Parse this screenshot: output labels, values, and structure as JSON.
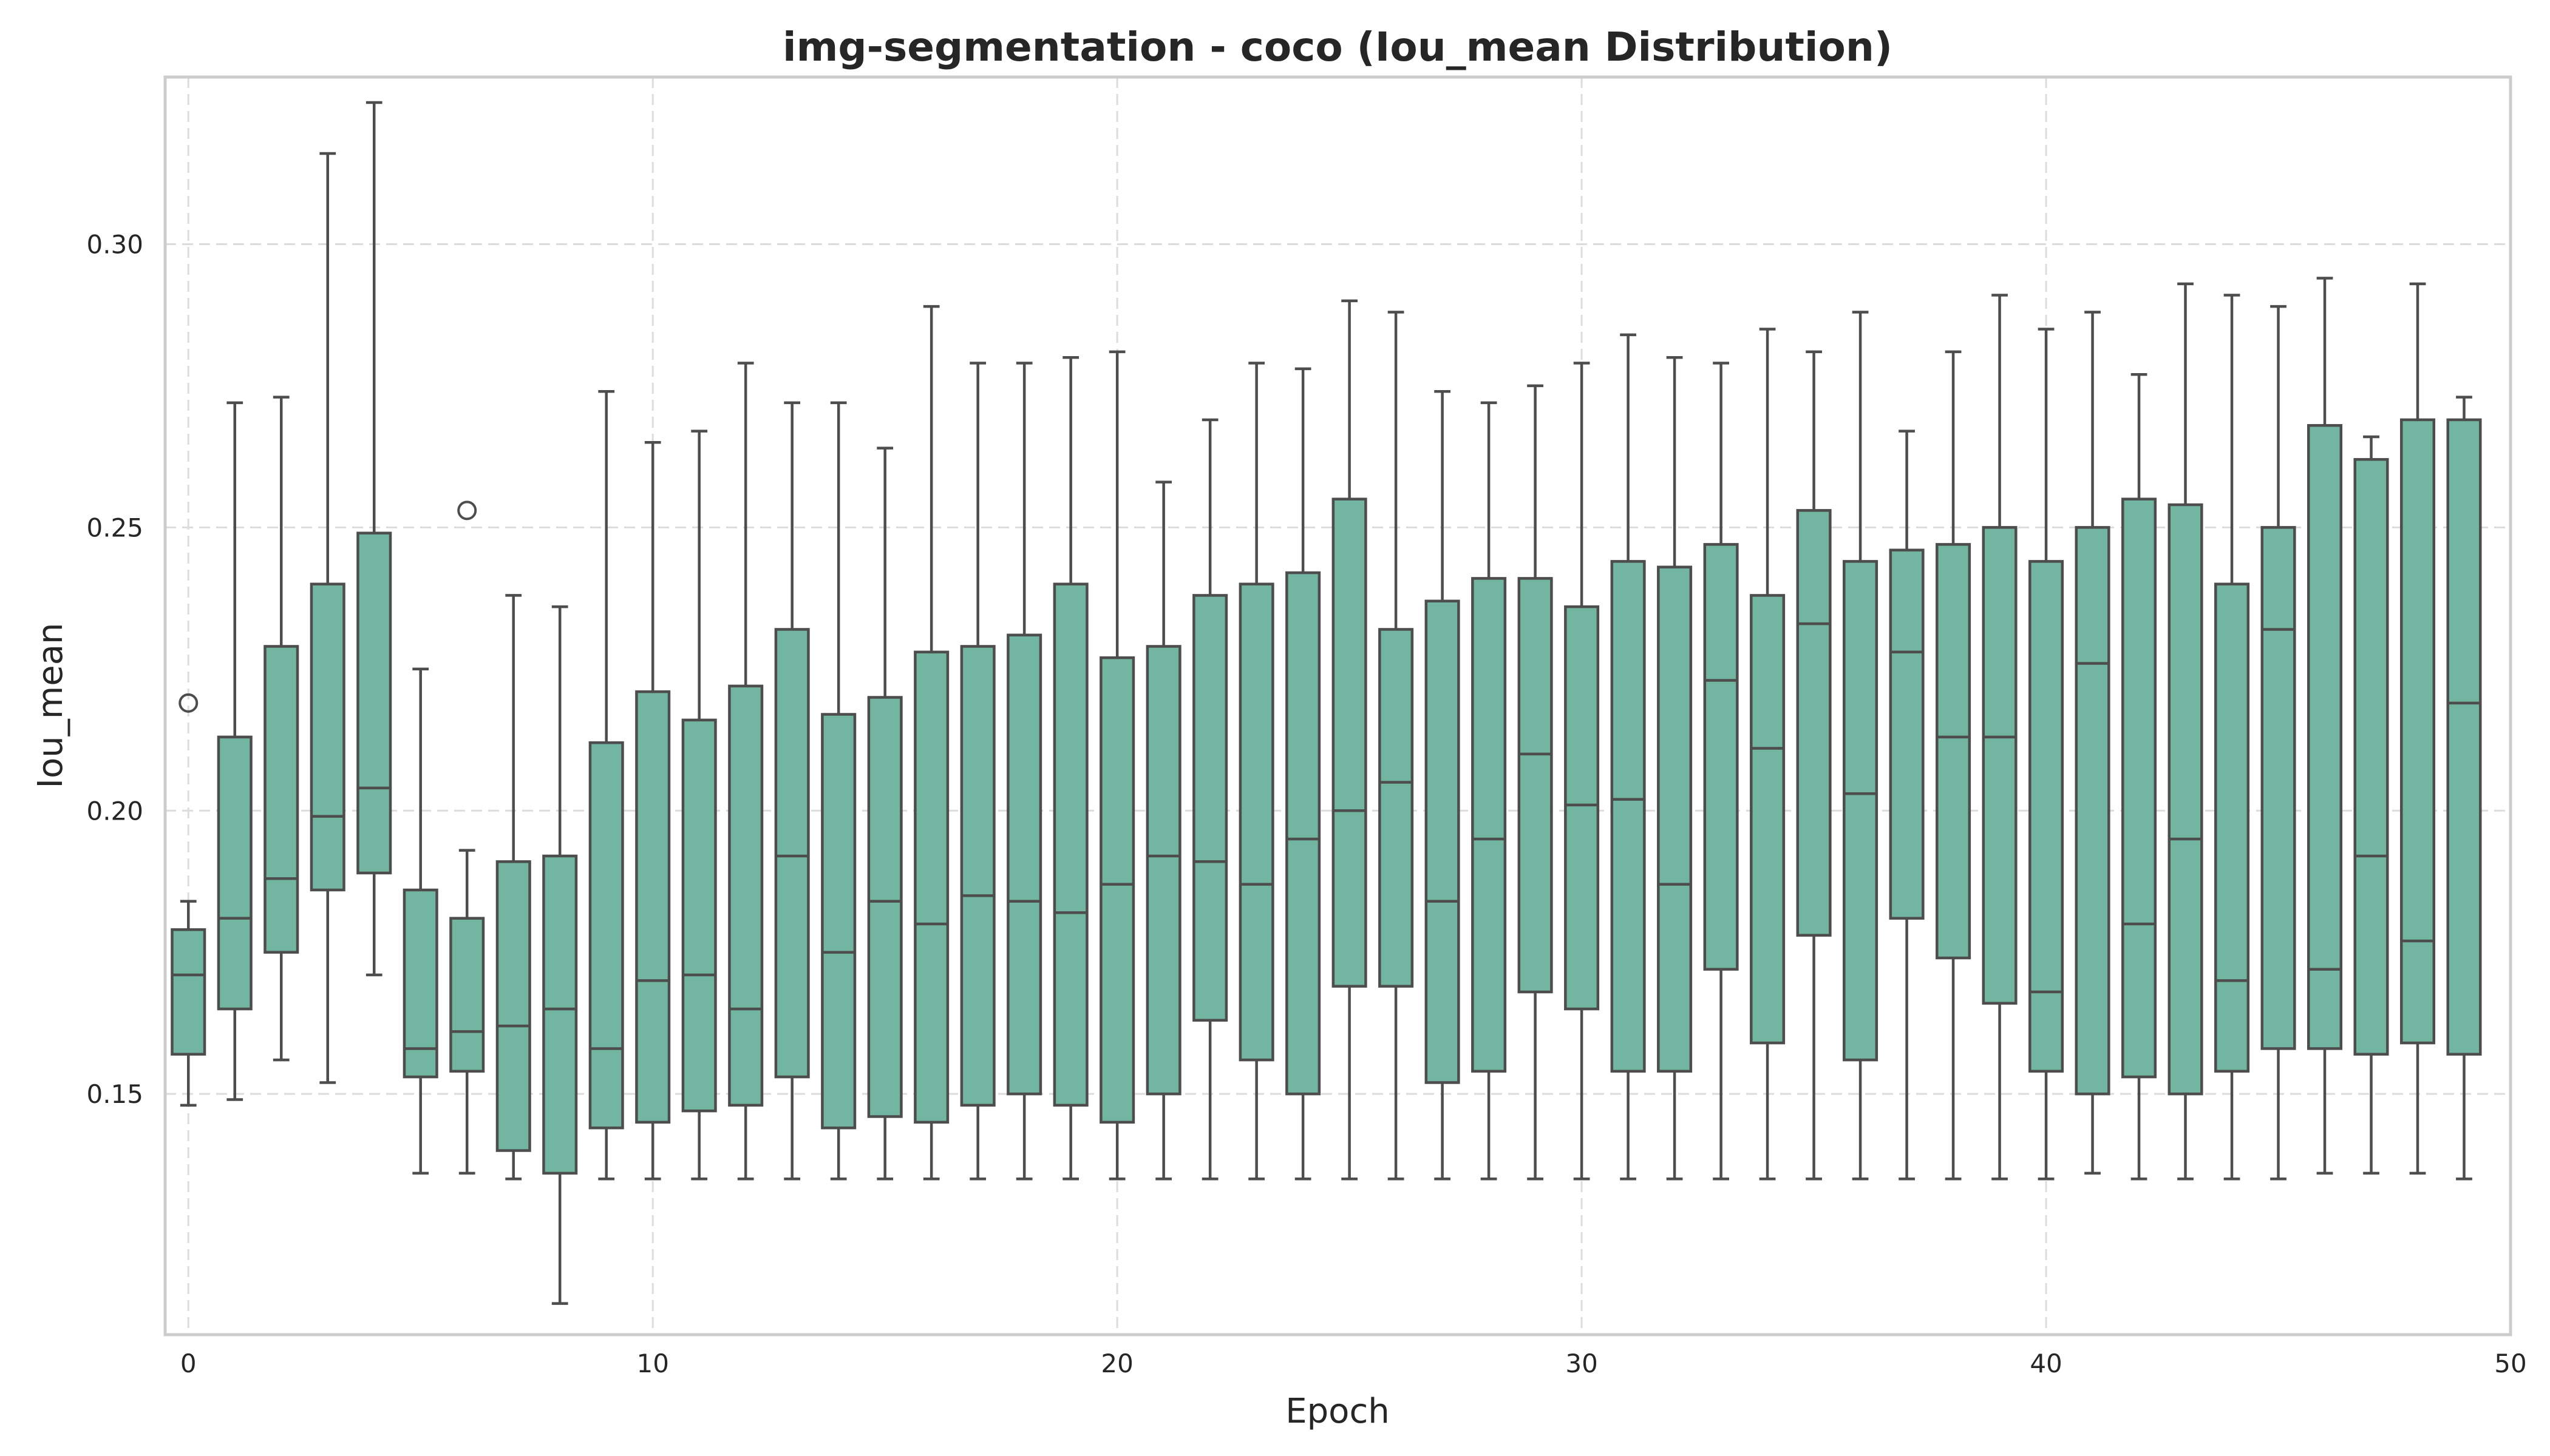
{
  "chart_data": {
    "type": "box",
    "title": "img-segmentation - coco (Iou_mean Distribution)",
    "xlabel": "Epoch",
    "ylabel": "Iou_mean",
    "xlim": [
      -0.5,
      50
    ],
    "ylim": [
      0.1075,
      0.3295
    ],
    "xticks": [
      0,
      10,
      20,
      30,
      40,
      50
    ],
    "yticks": [
      0.15,
      0.2,
      0.25,
      0.3
    ],
    "ytick_labels": [
      "0.15",
      "0.20",
      "0.25",
      "0.30"
    ],
    "grid": true,
    "box_color": "#72b6a1",
    "line_color": "#4d4d4d",
    "boxes": [
      {
        "epoch": 0,
        "whislo": 0.148,
        "q1": 0.157,
        "med": 0.171,
        "q3": 0.179,
        "whishi": 0.184,
        "fliers": [
          0.219
        ]
      },
      {
        "epoch": 1,
        "whislo": 0.149,
        "q1": 0.165,
        "med": 0.181,
        "q3": 0.213,
        "whishi": 0.272,
        "fliers": []
      },
      {
        "epoch": 2,
        "whislo": 0.156,
        "q1": 0.175,
        "med": 0.188,
        "q3": 0.229,
        "whishi": 0.273,
        "fliers": []
      },
      {
        "epoch": 3,
        "whislo": 0.152,
        "q1": 0.186,
        "med": 0.199,
        "q3": 0.24,
        "whishi": 0.316,
        "fliers": []
      },
      {
        "epoch": 4,
        "whislo": 0.171,
        "q1": 0.189,
        "med": 0.204,
        "q3": 0.249,
        "whishi": 0.325,
        "fliers": []
      },
      {
        "epoch": 5,
        "whislo": 0.136,
        "q1": 0.153,
        "med": 0.158,
        "q3": 0.186,
        "whishi": 0.225,
        "fliers": []
      },
      {
        "epoch": 6,
        "whislo": 0.136,
        "q1": 0.154,
        "med": 0.161,
        "q3": 0.181,
        "whishi": 0.193,
        "fliers": [
          0.253
        ]
      },
      {
        "epoch": 7,
        "whislo": 0.135,
        "q1": 0.14,
        "med": 0.162,
        "q3": 0.191,
        "whishi": 0.238,
        "fliers": []
      },
      {
        "epoch": 8,
        "whislo": 0.113,
        "q1": 0.136,
        "med": 0.165,
        "q3": 0.192,
        "whishi": 0.236,
        "fliers": []
      },
      {
        "epoch": 9,
        "whislo": 0.135,
        "q1": 0.144,
        "med": 0.158,
        "q3": 0.212,
        "whishi": 0.274,
        "fliers": []
      },
      {
        "epoch": 10,
        "whislo": 0.135,
        "q1": 0.145,
        "med": 0.17,
        "q3": 0.221,
        "whishi": 0.265,
        "fliers": []
      },
      {
        "epoch": 11,
        "whislo": 0.135,
        "q1": 0.147,
        "med": 0.171,
        "q3": 0.216,
        "whishi": 0.267,
        "fliers": []
      },
      {
        "epoch": 12,
        "whislo": 0.135,
        "q1": 0.148,
        "med": 0.165,
        "q3": 0.222,
        "whishi": 0.279,
        "fliers": []
      },
      {
        "epoch": 13,
        "whislo": 0.135,
        "q1": 0.153,
        "med": 0.192,
        "q3": 0.232,
        "whishi": 0.272,
        "fliers": []
      },
      {
        "epoch": 14,
        "whislo": 0.135,
        "q1": 0.144,
        "med": 0.175,
        "q3": 0.217,
        "whishi": 0.272,
        "fliers": []
      },
      {
        "epoch": 15,
        "whislo": 0.135,
        "q1": 0.146,
        "med": 0.184,
        "q3": 0.22,
        "whishi": 0.264,
        "fliers": []
      },
      {
        "epoch": 16,
        "whislo": 0.135,
        "q1": 0.145,
        "med": 0.18,
        "q3": 0.228,
        "whishi": 0.289,
        "fliers": []
      },
      {
        "epoch": 17,
        "whislo": 0.135,
        "q1": 0.148,
        "med": 0.185,
        "q3": 0.229,
        "whishi": 0.279,
        "fliers": []
      },
      {
        "epoch": 18,
        "whislo": 0.135,
        "q1": 0.15,
        "med": 0.184,
        "q3": 0.231,
        "whishi": 0.279,
        "fliers": []
      },
      {
        "epoch": 19,
        "whislo": 0.135,
        "q1": 0.148,
        "med": 0.182,
        "q3": 0.24,
        "whishi": 0.28,
        "fliers": []
      },
      {
        "epoch": 20,
        "whislo": 0.135,
        "q1": 0.145,
        "med": 0.187,
        "q3": 0.227,
        "whishi": 0.281,
        "fliers": []
      },
      {
        "epoch": 21,
        "whislo": 0.135,
        "q1": 0.15,
        "med": 0.192,
        "q3": 0.229,
        "whishi": 0.258,
        "fliers": []
      },
      {
        "epoch": 22,
        "whislo": 0.135,
        "q1": 0.163,
        "med": 0.191,
        "q3": 0.238,
        "whishi": 0.269,
        "fliers": []
      },
      {
        "epoch": 23,
        "whislo": 0.135,
        "q1": 0.156,
        "med": 0.187,
        "q3": 0.24,
        "whishi": 0.279,
        "fliers": []
      },
      {
        "epoch": 24,
        "whislo": 0.135,
        "q1": 0.15,
        "med": 0.195,
        "q3": 0.242,
        "whishi": 0.278,
        "fliers": []
      },
      {
        "epoch": 25,
        "whislo": 0.135,
        "q1": 0.169,
        "med": 0.2,
        "q3": 0.255,
        "whishi": 0.29,
        "fliers": []
      },
      {
        "epoch": 26,
        "whislo": 0.135,
        "q1": 0.169,
        "med": 0.205,
        "q3": 0.232,
        "whishi": 0.288,
        "fliers": []
      },
      {
        "epoch": 27,
        "whislo": 0.135,
        "q1": 0.152,
        "med": 0.184,
        "q3": 0.237,
        "whishi": 0.274,
        "fliers": []
      },
      {
        "epoch": 28,
        "whislo": 0.135,
        "q1": 0.154,
        "med": 0.195,
        "q3": 0.241,
        "whishi": 0.272,
        "fliers": []
      },
      {
        "epoch": 29,
        "whislo": 0.135,
        "q1": 0.168,
        "med": 0.21,
        "q3": 0.241,
        "whishi": 0.275,
        "fliers": []
      },
      {
        "epoch": 30,
        "whislo": 0.135,
        "q1": 0.165,
        "med": 0.201,
        "q3": 0.236,
        "whishi": 0.279,
        "fliers": []
      },
      {
        "epoch": 31,
        "whislo": 0.135,
        "q1": 0.154,
        "med": 0.202,
        "q3": 0.244,
        "whishi": 0.284,
        "fliers": []
      },
      {
        "epoch": 32,
        "whislo": 0.135,
        "q1": 0.154,
        "med": 0.187,
        "q3": 0.243,
        "whishi": 0.28,
        "fliers": []
      },
      {
        "epoch": 33,
        "whislo": 0.135,
        "q1": 0.172,
        "med": 0.223,
        "q3": 0.247,
        "whishi": 0.279,
        "fliers": []
      },
      {
        "epoch": 34,
        "whislo": 0.135,
        "q1": 0.159,
        "med": 0.211,
        "q3": 0.238,
        "whishi": 0.285,
        "fliers": []
      },
      {
        "epoch": 35,
        "whislo": 0.135,
        "q1": 0.178,
        "med": 0.233,
        "q3": 0.253,
        "whishi": 0.281,
        "fliers": []
      },
      {
        "epoch": 36,
        "whislo": 0.135,
        "q1": 0.156,
        "med": 0.203,
        "q3": 0.244,
        "whishi": 0.288,
        "fliers": []
      },
      {
        "epoch": 37,
        "whislo": 0.135,
        "q1": 0.181,
        "med": 0.228,
        "q3": 0.246,
        "whishi": 0.267,
        "fliers": []
      },
      {
        "epoch": 38,
        "whislo": 0.135,
        "q1": 0.174,
        "med": 0.213,
        "q3": 0.247,
        "whishi": 0.281,
        "fliers": []
      },
      {
        "epoch": 39,
        "whislo": 0.135,
        "q1": 0.166,
        "med": 0.213,
        "q3": 0.25,
        "whishi": 0.291,
        "fliers": []
      },
      {
        "epoch": 40,
        "whislo": 0.135,
        "q1": 0.154,
        "med": 0.168,
        "q3": 0.244,
        "whishi": 0.285,
        "fliers": []
      },
      {
        "epoch": 41,
        "whislo": 0.136,
        "q1": 0.15,
        "med": 0.226,
        "q3": 0.25,
        "whishi": 0.288,
        "fliers": []
      },
      {
        "epoch": 42,
        "whislo": 0.135,
        "q1": 0.153,
        "med": 0.18,
        "q3": 0.255,
        "whishi": 0.277,
        "fliers": []
      },
      {
        "epoch": 43,
        "whislo": 0.135,
        "q1": 0.15,
        "med": 0.195,
        "q3": 0.254,
        "whishi": 0.293,
        "fliers": []
      },
      {
        "epoch": 44,
        "whislo": 0.135,
        "q1": 0.154,
        "med": 0.17,
        "q3": 0.24,
        "whishi": 0.291,
        "fliers": []
      },
      {
        "epoch": 45,
        "whislo": 0.135,
        "q1": 0.158,
        "med": 0.232,
        "q3": 0.25,
        "whishi": 0.289,
        "fliers": []
      },
      {
        "epoch": 46,
        "whislo": 0.136,
        "q1": 0.158,
        "med": 0.172,
        "q3": 0.268,
        "whishi": 0.294,
        "fliers": []
      },
      {
        "epoch": 47,
        "whislo": 0.136,
        "q1": 0.157,
        "med": 0.192,
        "q3": 0.262,
        "whishi": 0.266,
        "fliers": []
      },
      {
        "epoch": 48,
        "whislo": 0.136,
        "q1": 0.159,
        "med": 0.177,
        "q3": 0.269,
        "whishi": 0.293,
        "fliers": []
      },
      {
        "epoch": 49,
        "whislo": 0.135,
        "q1": 0.157,
        "med": 0.219,
        "q3": 0.269,
        "whishi": 0.273,
        "fliers": []
      }
    ]
  }
}
